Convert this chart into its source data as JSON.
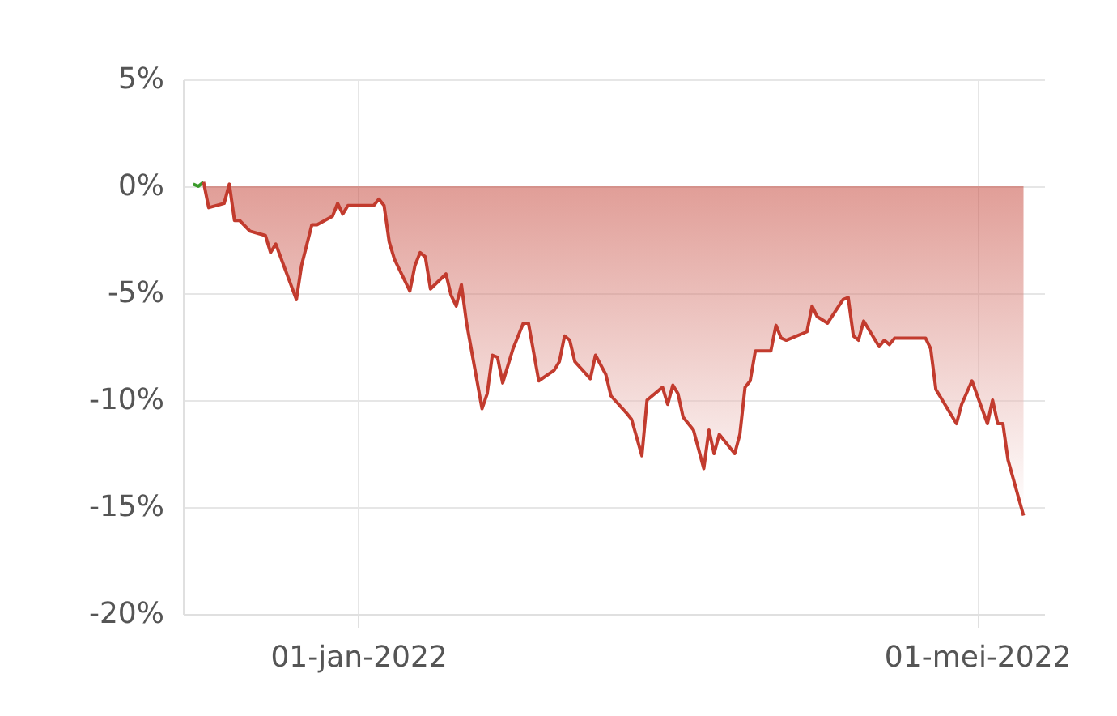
{
  "chart_data": {
    "type": "area",
    "xlim": [
      "2021-11-28",
      "2022-05-14"
    ],
    "xticks": [
      {
        "value": "2022-01-01",
        "label": "01-jan-2022"
      },
      {
        "value": "2022-05-01",
        "label": "01-mei-2022"
      }
    ],
    "ylim": [
      -20,
      5
    ],
    "yticks": [
      {
        "value": -20,
        "label": "-20%"
      },
      {
        "value": -15,
        "label": "-15%"
      },
      {
        "value": -10,
        "label": "-10%"
      },
      {
        "value": -5,
        "label": "-5%"
      },
      {
        "value": 0,
        "label": "0%"
      },
      {
        "value": 5,
        "label": "5%"
      }
    ],
    "grid": true,
    "series": [
      {
        "type": "line",
        "color": "#3a9a2a",
        "x": [
          "2021-11-30",
          "2021-12-01",
          "2021-12-02"
        ],
        "values": [
          0.1,
          0.0,
          0.2
        ]
      },
      {
        "color": "#c23b2e",
        "x": [
          "2021-12-02",
          "2021-12-03",
          "2021-12-06",
          "2021-12-07",
          "2021-12-08",
          "2021-12-09",
          "2021-12-11",
          "2021-12-14",
          "2021-12-15",
          "2021-12-16",
          "2021-12-20",
          "2021-12-21",
          "2021-12-23",
          "2021-12-24",
          "2021-12-27",
          "2021-12-28",
          "2021-12-29",
          "2021-12-30",
          "2022-01-04",
          "2022-01-05",
          "2022-01-06",
          "2022-01-07",
          "2022-01-08",
          "2022-01-11",
          "2022-01-12",
          "2022-01-13",
          "2022-01-14",
          "2022-01-15",
          "2022-01-18",
          "2022-01-19",
          "2022-01-20",
          "2022-01-21",
          "2022-01-22",
          "2022-01-25",
          "2022-01-26",
          "2022-01-27",
          "2022-01-28",
          "2022-01-29",
          "2022-01-31",
          "2022-02-02",
          "2022-02-03",
          "2022-02-05",
          "2022-02-08",
          "2022-02-09",
          "2022-02-10",
          "2022-02-11",
          "2022-02-12",
          "2022-02-15",
          "2022-02-16",
          "2022-02-18",
          "2022-02-19",
          "2022-02-22",
          "2022-02-23",
          "2022-02-25",
          "2022-02-26",
          "2022-03-01",
          "2022-03-02",
          "2022-03-03",
          "2022-03-04",
          "2022-03-05",
          "2022-03-07",
          "2022-03-09",
          "2022-03-10",
          "2022-03-11",
          "2022-03-12",
          "2022-03-15",
          "2022-03-16",
          "2022-03-17",
          "2022-03-18",
          "2022-03-19",
          "2022-03-22",
          "2022-03-23",
          "2022-03-24",
          "2022-03-25",
          "2022-03-29",
          "2022-03-30",
          "2022-03-31",
          "2022-04-02",
          "2022-04-05",
          "2022-04-06",
          "2022-04-07",
          "2022-04-08",
          "2022-04-09",
          "2022-04-12",
          "2022-04-13",
          "2022-04-14",
          "2022-04-15",
          "2022-04-21",
          "2022-04-22",
          "2022-04-23",
          "2022-04-27",
          "2022-04-28",
          "2022-04-30",
          "2022-05-03",
          "2022-05-04",
          "2022-05-05",
          "2022-05-06",
          "2022-05-07",
          "2022-05-10"
        ],
        "values": [
          0.2,
          -1.0,
          -0.8,
          0.1,
          -1.6,
          -1.6,
          -2.1,
          -2.3,
          -3.1,
          -2.7,
          -5.3,
          -3.7,
          -1.8,
          -1.8,
          -1.4,
          -0.8,
          -1.3,
          -0.9,
          -0.9,
          -0.6,
          -0.9,
          -2.6,
          -3.4,
          -4.9,
          -3.7,
          -3.1,
          -3.3,
          -4.8,
          -4.1,
          -5.1,
          -5.6,
          -4.6,
          -6.4,
          -10.4,
          -9.7,
          -7.9,
          -8.0,
          -9.2,
          -7.6,
          -6.4,
          -6.4,
          -9.1,
          -8.6,
          -8.2,
          -7.0,
          -7.2,
          -8.2,
          -9.0,
          -7.9,
          -8.8,
          -9.8,
          -10.6,
          -10.9,
          -12.6,
          -10.0,
          -9.4,
          -10.2,
          -9.3,
          -9.7,
          -10.8,
          -11.4,
          -13.2,
          -11.4,
          -12.5,
          -11.6,
          -12.5,
          -11.6,
          -9.4,
          -9.1,
          -7.7,
          -7.7,
          -6.5,
          -7.1,
          -7.2,
          -6.8,
          -5.6,
          -6.1,
          -6.4,
          -5.3,
          -5.2,
          -7.0,
          -7.2,
          -6.3,
          -7.5,
          -7.2,
          -7.4,
          -7.1,
          -7.1,
          -7.6,
          -9.5,
          -11.1,
          -10.2,
          -9.1,
          -11.1,
          -10.0,
          -11.1,
          -11.1,
          -12.8,
          -15.4
        ]
      }
    ]
  }
}
